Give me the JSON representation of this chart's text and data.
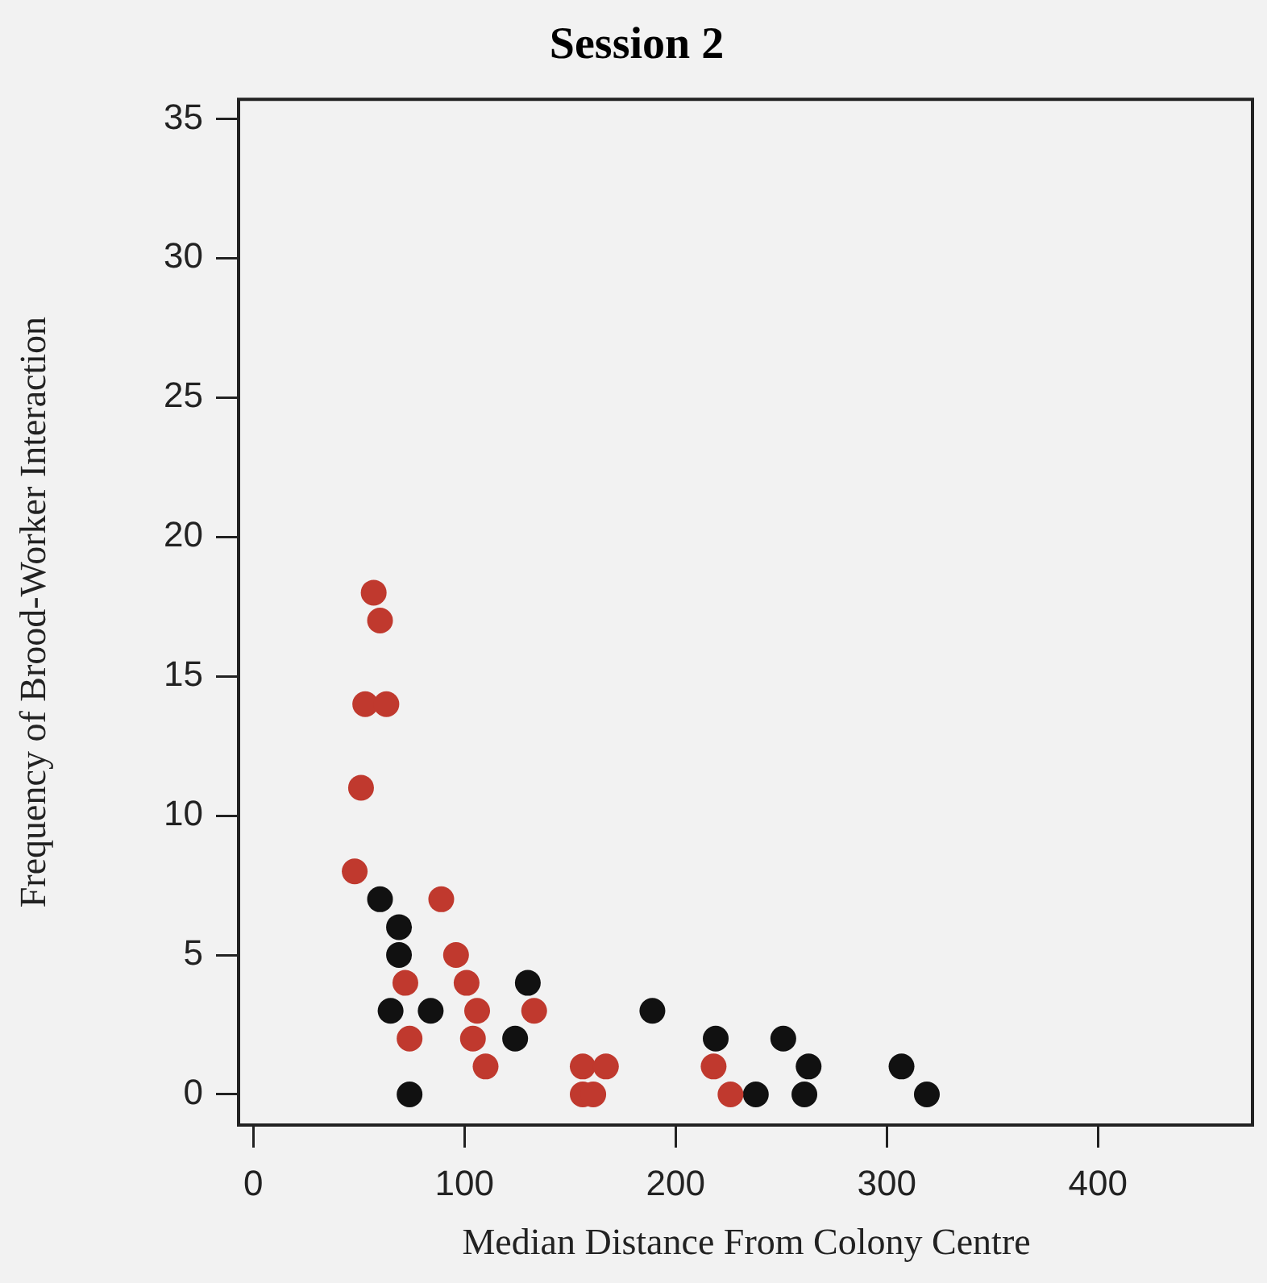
{
  "chart_data": {
    "type": "scatter",
    "title": "Session 2",
    "xlabel": "Median Distance From Colony Centre",
    "ylabel": "Frequency of Brood-Worker Interaction",
    "series": [
      {
        "color": "#c0392e",
        "x": [
          57,
          60,
          53,
          63,
          51,
          48,
          89,
          96,
          101,
          72,
          106,
          104,
          74,
          110,
          133,
          156,
          167,
          156,
          161,
          218,
          226
        ],
        "values": [
          18,
          17,
          14,
          14,
          11,
          8,
          7,
          5,
          4,
          4,
          3,
          2,
          2,
          1,
          3,
          1,
          1,
          0,
          0,
          1,
          0
        ]
      },
      {
        "color": "#111111",
        "x": [
          60,
          69,
          69,
          65,
          84,
          74,
          130,
          124,
          189,
          219,
          251,
          263,
          238,
          261,
          307,
          319
        ],
        "values": [
          7,
          6,
          5,
          3,
          3,
          0,
          4,
          2,
          3,
          2,
          2,
          1,
          0,
          0,
          1,
          0
        ]
      }
    ],
    "xlim": [
      -7,
      474
    ],
    "ylim": [
      -1.1,
      35.7
    ],
    "xticks": [
      0,
      100,
      200,
      300,
      400
    ],
    "yticks": [
      0,
      5,
      10,
      15,
      20,
      25,
      30,
      35
    ],
    "grid": false,
    "legend": false,
    "marker": "circle"
  }
}
